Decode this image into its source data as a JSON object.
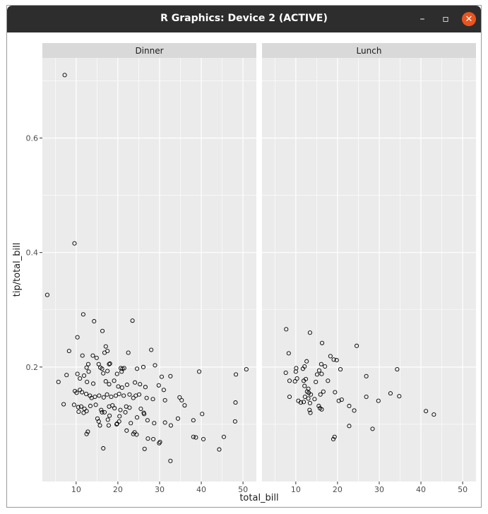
{
  "window": {
    "title": "R Graphics: Device 2 (ACTIVE)"
  },
  "icons": {
    "minimize": "minimize-icon",
    "maximize": "maximize-icon",
    "close": "close-icon"
  },
  "glyphs": {
    "minimize": "–",
    "maximize": "▫",
    "close": "✕"
  },
  "colors": {
    "titlebar": "#2d2d2d",
    "close": "#e9541f",
    "panel": "#ebebeb",
    "strip": "#d9d9d9",
    "grid": "#ffffff",
    "point_stroke": "#000000"
  },
  "chart_data": {
    "type": "scatter",
    "facets": [
      "Dinner",
      "Lunch"
    ],
    "xlabel": "total_bill",
    "ylabel": "tip/total_bill",
    "xlim": [
      1.9,
      53.2
    ],
    "ylim": [
      0.0,
      0.74
    ],
    "xticks": [
      10,
      20,
      30,
      40,
      50
    ],
    "yticks": [
      0.2,
      0.4,
      0.6
    ],
    "ytick_labels": [
      "0.2",
      "0.4",
      "0.6"
    ],
    "grid": true,
    "marker": "open-circle",
    "series": [
      {
        "values": [
          [
            7.25,
            0.71
          ],
          [
            9.6,
            0.416
          ],
          [
            3.07,
            0.326
          ],
          [
            11.7,
            0.292
          ],
          [
            14.3,
            0.28
          ],
          [
            23.5,
            0.281
          ],
          [
            16.3,
            0.263
          ],
          [
            10.3,
            0.252
          ],
          [
            17.1,
            0.236
          ],
          [
            28.0,
            0.23
          ],
          [
            8.3,
            0.228
          ],
          [
            17.5,
            0.228
          ],
          [
            22.5,
            0.225
          ],
          [
            16.8,
            0.225
          ],
          [
            14.0,
            0.22
          ],
          [
            11.5,
            0.22
          ],
          [
            14.9,
            0.216
          ],
          [
            12.9,
            0.205
          ],
          [
            15.4,
            0.205
          ],
          [
            17.9,
            0.205
          ],
          [
            18.1,
            0.206
          ],
          [
            20.7,
            0.198
          ],
          [
            21.5,
            0.198
          ],
          [
            24.6,
            0.197
          ],
          [
            26.1,
            0.2
          ],
          [
            28.9,
            0.203
          ],
          [
            12.5,
            0.199
          ],
          [
            15.8,
            0.199
          ],
          [
            16.2,
            0.197
          ],
          [
            17.5,
            0.193
          ],
          [
            13.0,
            0.192
          ],
          [
            20.9,
            0.192
          ],
          [
            21.1,
            0.197
          ],
          [
            10.3,
            0.188
          ],
          [
            11.9,
            0.185
          ],
          [
            16.5,
            0.189
          ],
          [
            19.8,
            0.188
          ],
          [
            30.5,
            0.183
          ],
          [
            32.6,
            0.184
          ],
          [
            39.5,
            0.192
          ],
          [
            48.3,
            0.187
          ],
          [
            50.8,
            0.196
          ],
          [
            5.75,
            0.174
          ],
          [
            7.7,
            0.186
          ],
          [
            10.9,
            0.18
          ],
          [
            12.6,
            0.174
          ],
          [
            14.1,
            0.171
          ],
          [
            17.1,
            0.175
          ],
          [
            17.9,
            0.17
          ],
          [
            19.1,
            0.176
          ],
          [
            20.1,
            0.166
          ],
          [
            21.0,
            0.164
          ],
          [
            22.2,
            0.169
          ],
          [
            24.1,
            0.173
          ],
          [
            25.3,
            0.17
          ],
          [
            26.6,
            0.165
          ],
          [
            29.8,
            0.168
          ],
          [
            31.0,
            0.16
          ],
          [
            9.7,
            0.158
          ],
          [
            10.1,
            0.155
          ],
          [
            10.9,
            0.16
          ],
          [
            11.4,
            0.156
          ],
          [
            12.4,
            0.153
          ],
          [
            13.3,
            0.15
          ],
          [
            13.7,
            0.146
          ],
          [
            14.5,
            0.148
          ],
          [
            15.5,
            0.15
          ],
          [
            16.6,
            0.147
          ],
          [
            17.4,
            0.152
          ],
          [
            18.4,
            0.148
          ],
          [
            19.5,
            0.15
          ],
          [
            20.3,
            0.153
          ],
          [
            21.4,
            0.15
          ],
          [
            22.8,
            0.152
          ],
          [
            23.7,
            0.146
          ],
          [
            24.3,
            0.15
          ],
          [
            25.1,
            0.152
          ],
          [
            26.9,
            0.146
          ],
          [
            28.4,
            0.144
          ],
          [
            31.3,
            0.142
          ],
          [
            34.8,
            0.147
          ],
          [
            35.3,
            0.142
          ],
          [
            36.0,
            0.133
          ],
          [
            48.2,
            0.138
          ],
          [
            7.0,
            0.135
          ],
          [
            9.5,
            0.134
          ],
          [
            10.5,
            0.13
          ],
          [
            11.2,
            0.131
          ],
          [
            12.0,
            0.127
          ],
          [
            13.4,
            0.132
          ],
          [
            14.7,
            0.134
          ],
          [
            16.0,
            0.125
          ],
          [
            16.8,
            0.121
          ],
          [
            17.9,
            0.131
          ],
          [
            18.7,
            0.133
          ],
          [
            19.2,
            0.128
          ],
          [
            20.6,
            0.125
          ],
          [
            22.0,
            0.131
          ],
          [
            22.8,
            0.129
          ],
          [
            25.5,
            0.127
          ],
          [
            26.2,
            0.12
          ],
          [
            10.6,
            0.122
          ],
          [
            11.8,
            0.12
          ],
          [
            12.5,
            0.123
          ],
          [
            16.2,
            0.121
          ],
          [
            18.0,
            0.115
          ],
          [
            20.4,
            0.114
          ],
          [
            21.8,
            0.121
          ],
          [
            24.6,
            0.112
          ],
          [
            26.3,
            0.118
          ],
          [
            34.4,
            0.11
          ],
          [
            40.2,
            0.118
          ],
          [
            15.1,
            0.11
          ],
          [
            15.4,
            0.105
          ],
          [
            17.6,
            0.108
          ],
          [
            19.7,
            0.1
          ],
          [
            20.3,
            0.105
          ],
          [
            23.1,
            0.102
          ],
          [
            27.1,
            0.107
          ],
          [
            28.7,
            0.102
          ],
          [
            31.3,
            0.103
          ],
          [
            32.7,
            0.098
          ],
          [
            38.1,
            0.107
          ],
          [
            48.1,
            0.105
          ],
          [
            15.7,
            0.098
          ],
          [
            17.8,
            0.098
          ],
          [
            19.8,
            0.101
          ],
          [
            22.1,
            0.089
          ],
          [
            24.0,
            0.086
          ],
          [
            24.5,
            0.082
          ],
          [
            12.5,
            0.083
          ],
          [
            12.8,
            0.087
          ],
          [
            23.7,
            0.083
          ],
          [
            27.2,
            0.075
          ],
          [
            28.5,
            0.074
          ],
          [
            29.9,
            0.067
          ],
          [
            30.1,
            0.069
          ],
          [
            38.7,
            0.077
          ],
          [
            38.1,
            0.078
          ],
          [
            40.5,
            0.074
          ],
          [
            45.4,
            0.078
          ],
          [
            16.5,
            0.058
          ],
          [
            26.4,
            0.057
          ],
          [
            44.3,
            0.056
          ],
          [
            32.6,
            0.036
          ]
        ]
      },
      {
        "values": [
          [
            7.7,
            0.266
          ],
          [
            13.4,
            0.26
          ],
          [
            16.3,
            0.242
          ],
          [
            24.6,
            0.237
          ],
          [
            8.3,
            0.224
          ],
          [
            18.3,
            0.219
          ],
          [
            19.1,
            0.213
          ],
          [
            19.8,
            0.212
          ],
          [
            12.6,
            0.21
          ],
          [
            16.1,
            0.205
          ],
          [
            17.0,
            0.201
          ],
          [
            12.1,
            0.201
          ],
          [
            10.1,
            0.198
          ],
          [
            11.7,
            0.197
          ],
          [
            15.6,
            0.194
          ],
          [
            20.7,
            0.196
          ],
          [
            34.3,
            0.196
          ],
          [
            7.6,
            0.19
          ],
          [
            10.0,
            0.192
          ],
          [
            16.2,
            0.188
          ],
          [
            15.1,
            0.187
          ],
          [
            26.9,
            0.184
          ],
          [
            8.5,
            0.176
          ],
          [
            9.8,
            0.175
          ],
          [
            10.3,
            0.18
          ],
          [
            11.9,
            0.176
          ],
          [
            12.4,
            0.179
          ],
          [
            14.8,
            0.174
          ],
          [
            17.7,
            0.176
          ],
          [
            12.1,
            0.167
          ],
          [
            13.0,
            0.162
          ],
          [
            16.6,
            0.157
          ],
          [
            19.4,
            0.156
          ],
          [
            12.7,
            0.157
          ],
          [
            13.1,
            0.155
          ],
          [
            13.6,
            0.152
          ],
          [
            15.9,
            0.152
          ],
          [
            32.7,
            0.154
          ],
          [
            8.5,
            0.148
          ],
          [
            13.0,
            0.145
          ],
          [
            12.2,
            0.148
          ],
          [
            14.5,
            0.144
          ],
          [
            26.9,
            0.148
          ],
          [
            34.8,
            0.149
          ],
          [
            10.6,
            0.141
          ],
          [
            11.2,
            0.138
          ],
          [
            11.9,
            0.139
          ],
          [
            13.4,
            0.137
          ],
          [
            20.3,
            0.141
          ],
          [
            21.0,
            0.143
          ],
          [
            29.8,
            0.141
          ],
          [
            15.5,
            0.132
          ],
          [
            22.8,
            0.132
          ],
          [
            15.8,
            0.128
          ],
          [
            16.2,
            0.126
          ],
          [
            13.3,
            0.125
          ],
          [
            13.5,
            0.12
          ],
          [
            24.0,
            0.124
          ],
          [
            41.2,
            0.123
          ],
          [
            43.1,
            0.117
          ],
          [
            22.8,
            0.097
          ],
          [
            28.4,
            0.092
          ],
          [
            19.3,
            0.078
          ],
          [
            19.0,
            0.074
          ]
        ]
      }
    ]
  }
}
